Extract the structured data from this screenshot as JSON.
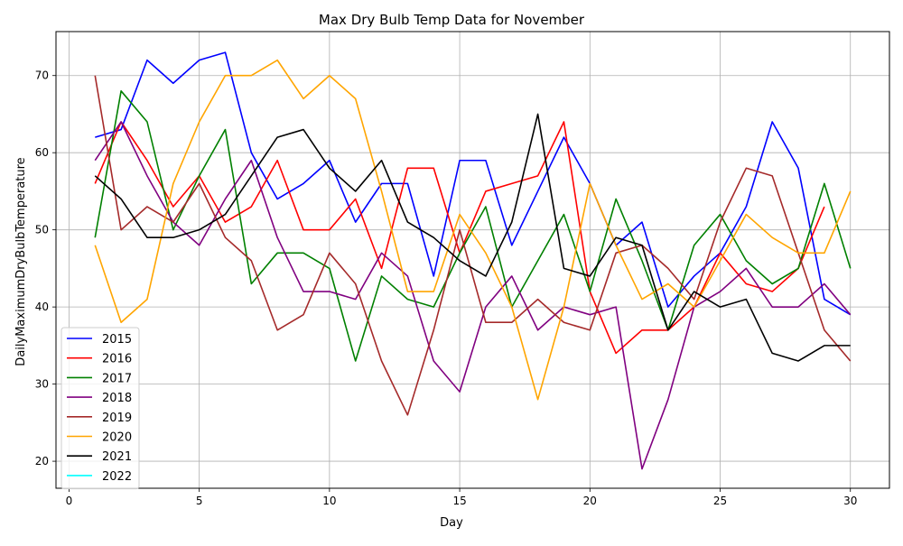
{
  "chart_data": {
    "type": "line",
    "title": "Max Dry Bulb Temp Data for November",
    "xlabel": "Day",
    "ylabel": "DailyMaximumDryBulbTemperature",
    "xlim": [
      -0.5,
      31.5
    ],
    "ylim": [
      16.5,
      75.7
    ],
    "xticks": [
      0,
      5,
      10,
      15,
      20,
      25,
      30
    ],
    "yticks": [
      20,
      30,
      40,
      50,
      60,
      70
    ],
    "grid": true,
    "legend_position": "lower-left",
    "series": [
      {
        "name": "2015",
        "color": "#0000ff",
        "x": [
          1,
          2,
          3,
          4,
          5,
          6,
          7,
          8,
          9,
          10,
          11,
          12,
          13,
          14,
          15,
          16,
          17,
          18,
          19,
          20,
          21,
          22,
          23,
          24,
          25,
          26,
          27,
          28,
          29,
          30
        ],
        "y": [
          62,
          63,
          72,
          69,
          72,
          73,
          60,
          54,
          56,
          59,
          51,
          56,
          56,
          44,
          59,
          59,
          48,
          55,
          62,
          56,
          48,
          51,
          40,
          44,
          47,
          53,
          64,
          58,
          41,
          39
        ]
      },
      {
        "name": "2016",
        "color": "#ff0000",
        "x": [
          1,
          2,
          3,
          4,
          5,
          6,
          7,
          8,
          9,
          10,
          11,
          12,
          13,
          14,
          15,
          16,
          17,
          18,
          19,
          20,
          21,
          22,
          23,
          24,
          25,
          26,
          27,
          28,
          29
        ],
        "y": [
          56,
          64,
          59,
          53,
          57,
          51,
          53,
          59,
          50,
          50,
          54,
          45,
          58,
          58,
          47,
          55,
          56,
          57,
          64,
          42,
          34,
          37,
          37,
          40,
          47,
          43,
          42,
          45,
          53
        ]
      },
      {
        "name": "2017",
        "color": "#008000",
        "x": [
          1,
          2,
          3,
          4,
          5,
          6,
          7,
          8,
          9,
          10,
          11,
          12,
          13,
          14,
          15,
          16,
          17,
          18,
          19,
          20,
          21,
          22,
          23,
          24,
          25,
          26,
          27,
          28,
          29,
          30
        ],
        "y": [
          49,
          68,
          64,
          50,
          57,
          63,
          43,
          47,
          47,
          45,
          33,
          44,
          41,
          40,
          47,
          53,
          40,
          46,
          52,
          42,
          54,
          46,
          37,
          48,
          52,
          46,
          43,
          45,
          56,
          45
        ]
      },
      {
        "name": "2018",
        "color": "#800080",
        "x": [
          1,
          2,
          3,
          4,
          5,
          6,
          7,
          8,
          9,
          10,
          11,
          12,
          13,
          14,
          15,
          16,
          17,
          18,
          19,
          20,
          21,
          22,
          23,
          24,
          25,
          26,
          27,
          28,
          29,
          30
        ],
        "y": [
          59,
          64,
          57,
          51,
          48,
          54,
          59,
          49,
          42,
          42,
          41,
          47,
          44,
          33,
          29,
          40,
          44,
          37,
          40,
          39,
          40,
          19,
          28,
          40,
          42,
          45,
          40,
          40,
          43,
          39
        ]
      },
      {
        "name": "2019",
        "color": "#a52a2a",
        "x": [
          1,
          2,
          3,
          4,
          5,
          6,
          7,
          8,
          9,
          10,
          11,
          12,
          13,
          14,
          15,
          16,
          17,
          18,
          19,
          20,
          21,
          22,
          23,
          24,
          25,
          26,
          27,
          28,
          29,
          30
        ],
        "y": [
          70,
          50,
          53,
          51,
          56,
          49,
          46,
          37,
          39,
          47,
          43,
          33,
          26,
          37,
          50,
          38,
          38,
          41,
          38,
          37,
          47,
          48,
          45,
          41,
          51,
          58,
          57,
          47,
          37,
          33
        ]
      },
      {
        "name": "2020",
        "color": "#ffa500",
        "x": [
          1,
          2,
          3,
          4,
          5,
          6,
          7,
          8,
          9,
          10,
          11,
          12,
          13,
          14,
          15,
          16,
          17,
          18,
          19,
          20,
          21,
          22,
          23,
          24,
          25,
          26,
          27,
          28,
          29,
          30
        ],
        "y": [
          48,
          38,
          41,
          56,
          64,
          70,
          70,
          72,
          67,
          70,
          67,
          55,
          42,
          42,
          52,
          47,
          40,
          28,
          40,
          56,
          48,
          41,
          43,
          40,
          46,
          52,
          49,
          47,
          47,
          55
        ]
      },
      {
        "name": "2021",
        "color": "#000000",
        "x": [
          1,
          2,
          3,
          4,
          5,
          6,
          7,
          8,
          9,
          10,
          11,
          12,
          13,
          14,
          15,
          16,
          17,
          18,
          19,
          20,
          21,
          22,
          23,
          24,
          25,
          26,
          27,
          28,
          29,
          30
        ],
        "y": [
          57,
          54,
          49,
          49,
          50,
          52,
          57,
          62,
          63,
          58,
          55,
          59,
          51,
          49,
          46,
          44,
          51,
          65,
          45,
          44,
          49,
          48,
          37,
          42,
          40,
          41,
          34,
          33,
          35,
          35
        ]
      },
      {
        "name": "2022",
        "color": "#00ffff",
        "x": [],
        "y": []
      }
    ]
  }
}
